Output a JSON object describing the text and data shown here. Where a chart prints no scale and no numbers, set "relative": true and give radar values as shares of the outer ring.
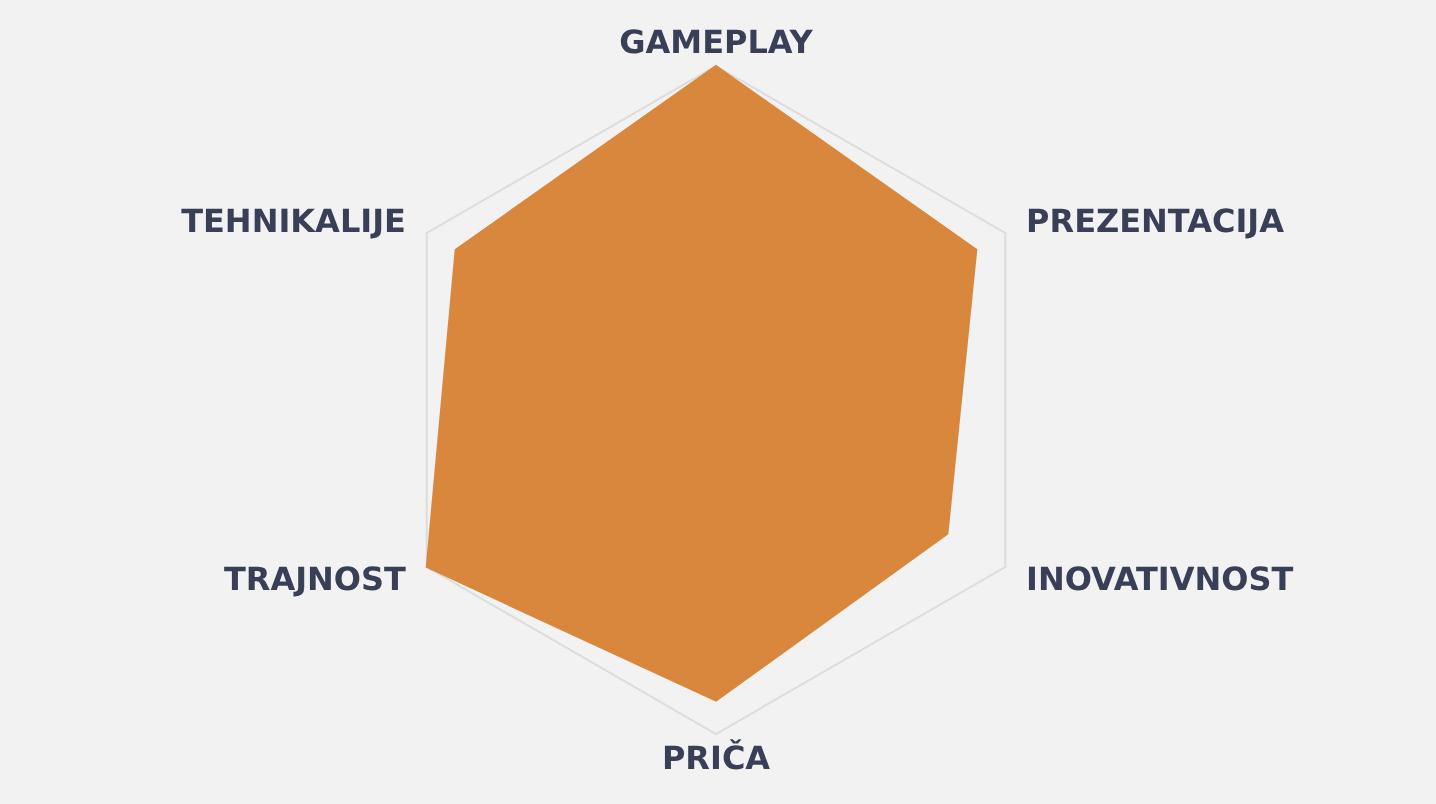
{
  "chart_data": {
    "type": "radar",
    "relative": true,
    "grid": true,
    "categories": [
      "GAMEPLAY",
      "PREZENTACIJA",
      "INOVATIVNOST",
      "PRIČA",
      "TRAJNOST",
      "TEHNIKALIJE"
    ],
    "series": [
      {
        "color": "#d9873c",
        "values": [
          1,
          0.9,
          0.8,
          0.9,
          1,
          0.9
        ]
      }
    ]
  }
}
